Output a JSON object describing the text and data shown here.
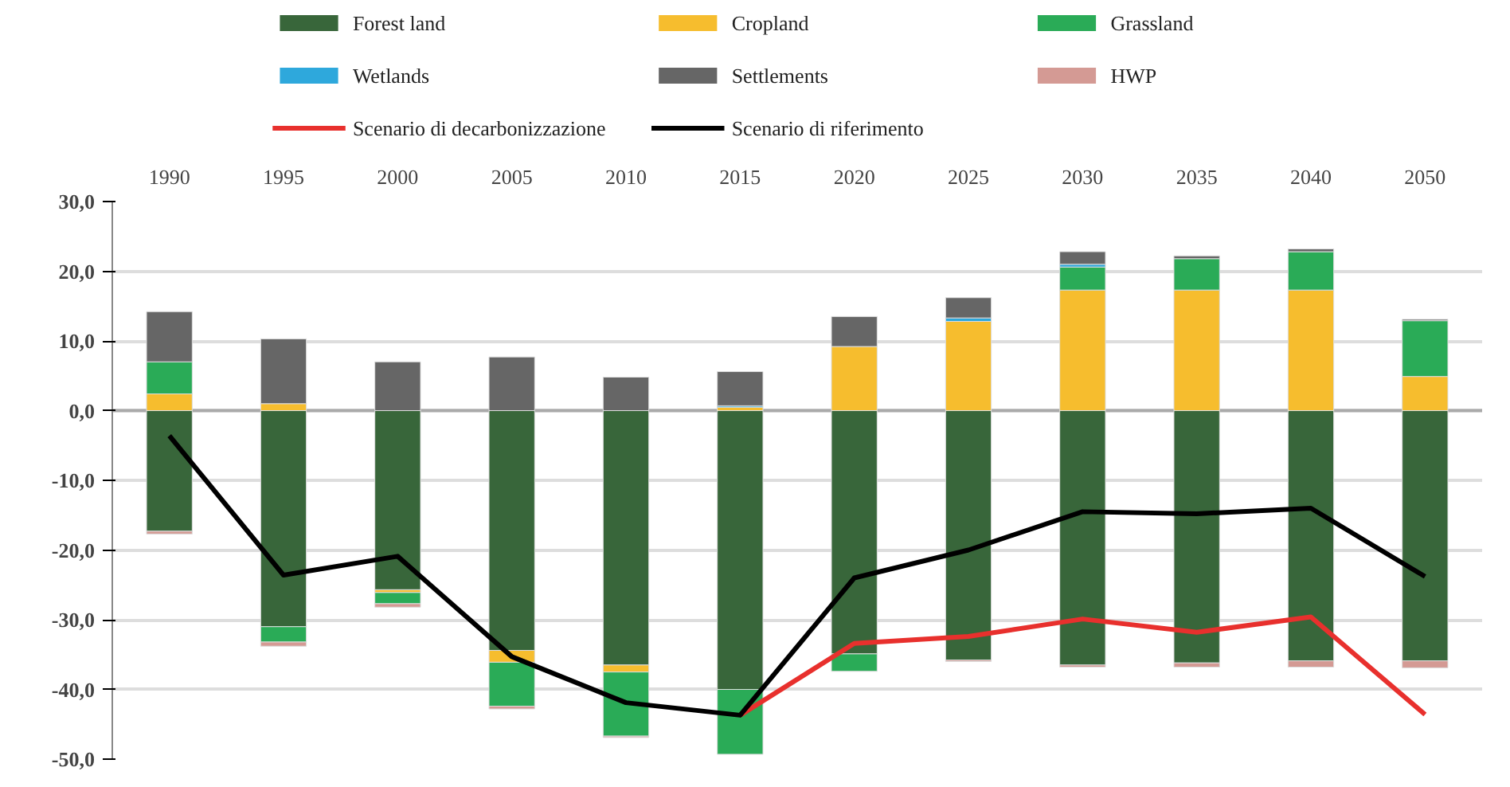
{
  "chart_data": {
    "type": "bar",
    "stacked": true,
    "categories": [
      "1990",
      "1995",
      "2000",
      "2005",
      "2010",
      "2015",
      "2020",
      "2025",
      "2030",
      "2035",
      "2040",
      "2050"
    ],
    "series": [
      {
        "name": "Forest land",
        "color": "#38663a",
        "values": [
          -17.3,
          -31.0,
          -25.7,
          -34.4,
          -36.5,
          -40.0,
          -34.9,
          -35.8,
          -36.5,
          -36.2,
          -35.9,
          -35.9
        ]
      },
      {
        "name": "Cropland",
        "color": "#f6bd2e",
        "values": [
          2.4,
          1.0,
          -0.4,
          -1.7,
          -1.0,
          0.5,
          9.2,
          12.8,
          17.3,
          17.3,
          17.3,
          4.9
        ]
      },
      {
        "name": "Grassland",
        "color": "#2aab57",
        "values": [
          4.6,
          -2.2,
          -1.6,
          -6.3,
          -9.2,
          -9.3,
          -2.5,
          null,
          3.3,
          4.5,
          5.5,
          8.0
        ]
      },
      {
        "name": "Wetlands",
        "color": "#2ea8dc",
        "values": [
          null,
          null,
          null,
          null,
          null,
          0.2,
          null,
          0.5,
          0.4,
          null,
          null,
          null
        ]
      },
      {
        "name": "Settlements",
        "color": "#666666",
        "values": [
          7.2,
          9.3,
          7.0,
          7.7,
          4.8,
          4.9,
          4.3,
          2.9,
          1.8,
          0.4,
          0.4,
          0.2
        ]
      },
      {
        "name": "HWP",
        "color": "#d49a94",
        "values": [
          -0.4,
          -0.6,
          -0.5,
          -0.4,
          -0.2,
          null,
          null,
          -0.2,
          -0.3,
          -0.6,
          -0.9,
          -1.0
        ]
      },
      {
        "name": "Scenario di decarbonizzazione",
        "type": "line",
        "color": "#e8302d",
        "values": [
          null,
          null,
          null,
          null,
          null,
          -43.7,
          -33.4,
          -32.4,
          -29.9,
          -31.8,
          -29.6,
          -43.6
        ]
      },
      {
        "name": "Scenario di riferimento",
        "type": "line",
        "color": "#000000",
        "values": [
          -3.6,
          -23.6,
          -20.9,
          -35.3,
          -41.9,
          -43.7,
          -24.0,
          -20.0,
          -14.5,
          -14.8,
          -14.0,
          -23.8
        ]
      }
    ],
    "ylim": [
      -50,
      30
    ],
    "yticks": [
      {
        "value": 30,
        "label": "30,0"
      },
      {
        "value": 20,
        "label": "20,0"
      },
      {
        "value": 10,
        "label": "10,0"
      },
      {
        "value": 0,
        "label": "0,0"
      },
      {
        "value": -10,
        "label": "-10,0"
      },
      {
        "value": -20,
        "label": "-20,0"
      },
      {
        "value": -30,
        "label": "-30,0"
      },
      {
        "value": -40,
        "label": "-40,0"
      },
      {
        "value": -50,
        "label": "-50,0"
      }
    ],
    "grid": "y",
    "legend": "top"
  }
}
